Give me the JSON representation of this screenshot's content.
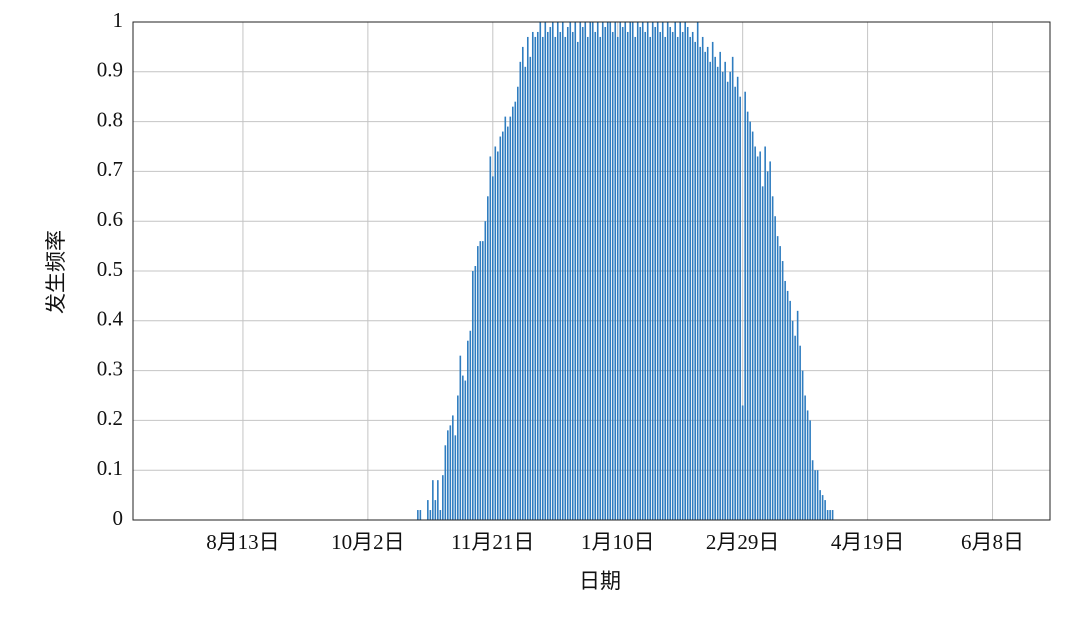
{
  "chart_data": {
    "type": "bar",
    "x_label": "日期",
    "y_label": "发生频率",
    "color": "#2f7dc0",
    "grid": true,
    "xlim": [
      -1,
      366
    ],
    "xticks": [
      {
        "value": 43,
        "label": "8月13日"
      },
      {
        "value": 93,
        "label": "10月2日"
      },
      {
        "value": 143,
        "label": "11月21日"
      },
      {
        "value": 193,
        "label": "1月10日"
      },
      {
        "value": 243,
        "label": "2月29日"
      },
      {
        "value": 293,
        "label": "4月19日"
      },
      {
        "value": 343,
        "label": "6月8日"
      }
    ],
    "ylim": [
      0,
      1
    ],
    "yticks": [
      0,
      0.1,
      0.2,
      0.3,
      0.4,
      0.5,
      0.6,
      0.7,
      0.8,
      0.9,
      1
    ],
    "x": [
      113,
      114,
      115,
      116,
      117,
      118,
      119,
      120,
      121,
      122,
      123,
      124,
      125,
      126,
      127,
      128,
      129,
      130,
      131,
      132,
      133,
      134,
      135,
      136,
      137,
      138,
      139,
      140,
      141,
      142,
      143,
      144,
      145,
      146,
      147,
      148,
      149,
      150,
      151,
      152,
      153,
      154,
      155,
      156,
      157,
      158,
      159,
      160,
      161,
      162,
      163,
      164,
      165,
      166,
      167,
      168,
      169,
      170,
      171,
      172,
      173,
      174,
      175,
      176,
      177,
      178,
      179,
      180,
      181,
      182,
      183,
      184,
      185,
      186,
      187,
      188,
      189,
      190,
      191,
      192,
      193,
      194,
      195,
      196,
      197,
      198,
      199,
      200,
      201,
      202,
      203,
      204,
      205,
      206,
      207,
      208,
      209,
      210,
      211,
      212,
      213,
      214,
      215,
      216,
      217,
      218,
      219,
      220,
      221,
      222,
      223,
      224,
      225,
      226,
      227,
      228,
      229,
      230,
      231,
      232,
      233,
      234,
      235,
      236,
      237,
      238,
      239,
      240,
      241,
      242,
      243,
      244,
      245,
      246,
      247,
      248,
      249,
      250,
      251,
      252,
      253,
      254,
      255,
      256,
      257,
      258,
      259,
      260,
      261,
      262,
      263,
      264,
      265,
      266,
      267,
      268,
      269,
      270,
      271,
      272,
      273,
      274,
      275,
      276,
      277,
      278,
      279
    ],
    "values": [
      0.02,
      0.02,
      0,
      0,
      0.04,
      0.02,
      0.08,
      0.04,
      0.08,
      0.02,
      0.09,
      0.15,
      0.18,
      0.19,
      0.21,
      0.17,
      0.25,
      0.33,
      0.29,
      0.28,
      0.36,
      0.38,
      0.5,
      0.51,
      0.55,
      0.56,
      0.56,
      0.6,
      0.65,
      0.73,
      0.69,
      0.75,
      0.74,
      0.77,
      0.78,
      0.81,
      0.79,
      0.81,
      0.83,
      0.84,
      0.87,
      0.92,
      0.95,
      0.91,
      0.97,
      0.93,
      0.98,
      0.97,
      0.98,
      1,
      0.97,
      1,
      0.98,
      0.99,
      1,
      0.97,
      1,
      0.98,
      1,
      0.97,
      0.99,
      1,
      0.98,
      1,
      0.96,
      1,
      0.99,
      1,
      0.97,
      1,
      1,
      0.98,
      1,
      0.97,
      1,
      0.99,
      1,
      1,
      0.98,
      1,
      0.97,
      1,
      0.99,
      1,
      0.98,
      1,
      1,
      0.97,
      1,
      0.99,
      1,
      0.98,
      1,
      0.97,
      1,
      0.99,
      1,
      0.98,
      1,
      0.97,
      1,
      0.99,
      0.98,
      1,
      0.97,
      1,
      0.98,
      1,
      0.99,
      0.97,
      0.98,
      0.96,
      1,
      0.95,
      0.97,
      0.94,
      0.95,
      0.92,
      0.96,
      0.93,
      0.91,
      0.94,
      0.9,
      0.92,
      0.88,
      0.9,
      0.93,
      0.87,
      0.89,
      0.85,
      0.23,
      0.86,
      0.82,
      0.8,
      0.78,
      0.75,
      0.73,
      0.74,
      0.67,
      0.75,
      0.7,
      0.72,
      0.65,
      0.61,
      0.57,
      0.55,
      0.52,
      0.48,
      0.46,
      0.44,
      0.4,
      0.37,
      0.42,
      0.35,
      0.3,
      0.25,
      0.22,
      0.2,
      0.12,
      0.1,
      0.1,
      0.06,
      0.05,
      0.04,
      0.02,
      0.02,
      0.02
    ]
  }
}
